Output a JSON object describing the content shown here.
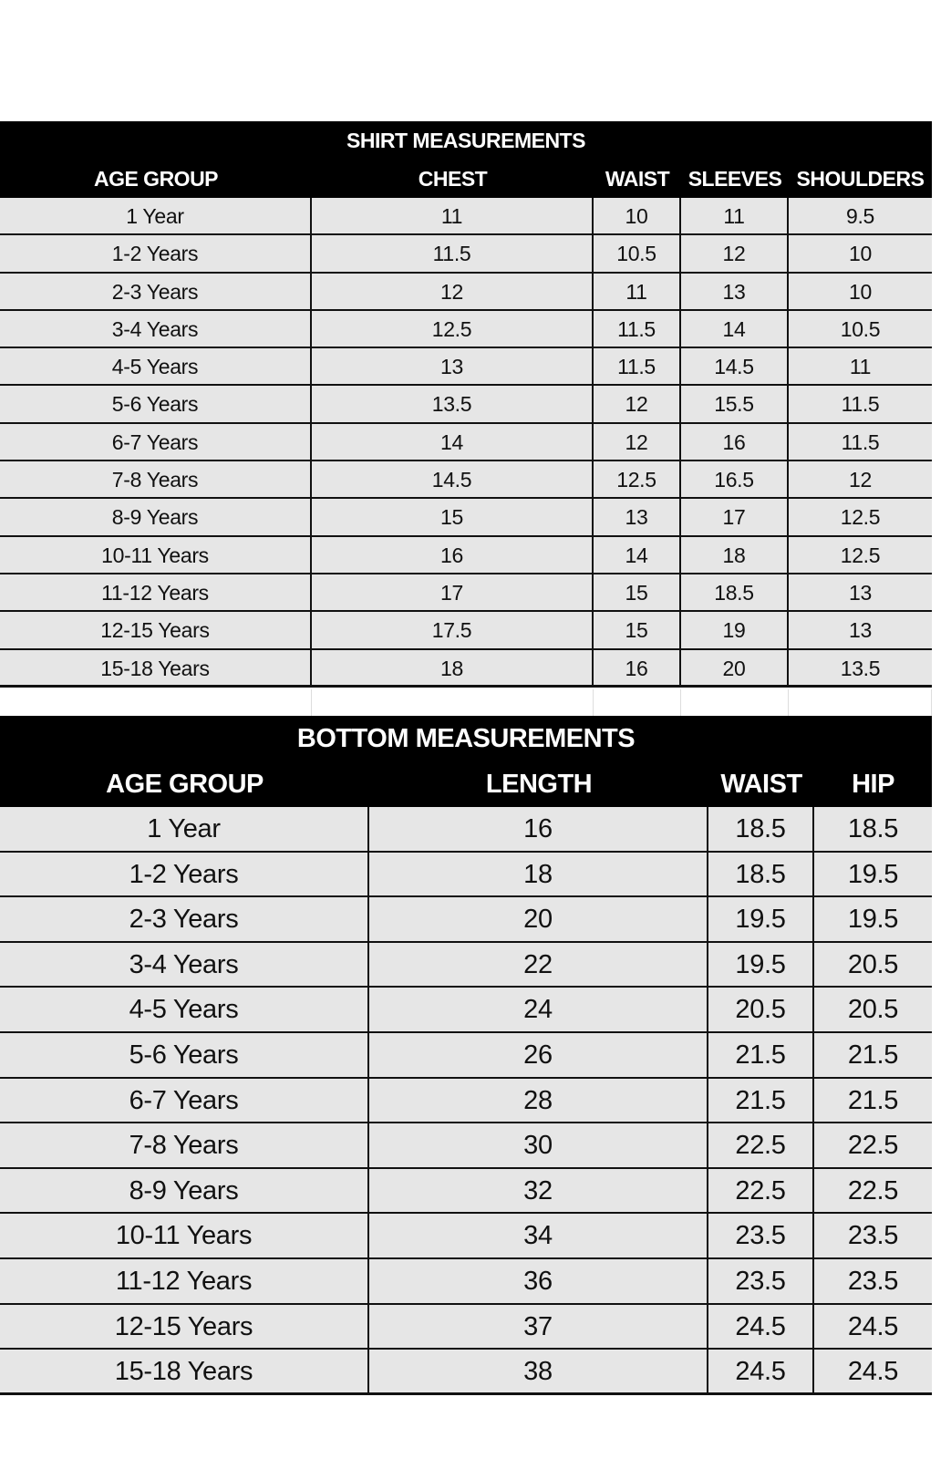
{
  "shirt": {
    "title": "SHIRT MEASUREMENTS",
    "headers": [
      "AGE GROUP",
      "CHEST",
      "WAIST",
      "SLEEVES",
      "SHOULDERS"
    ],
    "rows": [
      [
        "1 Year",
        "11",
        "10",
        "11",
        "9.5"
      ],
      [
        "1-2 Years",
        "11.5",
        "10.5",
        "12",
        "10"
      ],
      [
        "2-3 Years",
        "12",
        "11",
        "13",
        "10"
      ],
      [
        "3-4 Years",
        "12.5",
        "11.5",
        "14",
        "10.5"
      ],
      [
        "4-5 Years",
        "13",
        "11.5",
        "14.5",
        "11"
      ],
      [
        "5-6 Years",
        "13.5",
        "12",
        "15.5",
        "11.5"
      ],
      [
        "6-7 Years",
        "14",
        "12",
        "16",
        "11.5"
      ],
      [
        "7-8 Years",
        "14.5",
        "12.5",
        "16.5",
        "12"
      ],
      [
        "8-9 Years",
        "15",
        "13",
        "17",
        "12.5"
      ],
      [
        "10-11 Years",
        "16",
        "14",
        "18",
        "12.5"
      ],
      [
        "11-12 Years",
        "17",
        "15",
        "18.5",
        "13"
      ],
      [
        "12-15 Years",
        "17.5",
        "15",
        "19",
        "13"
      ],
      [
        "15-18 Years",
        "18",
        "16",
        "20",
        "13.5"
      ]
    ]
  },
  "bottom": {
    "title": "BOTTOM MEASUREMENTS",
    "headers": [
      "AGE GROUP",
      "LENGTH",
      "WAIST",
      "HIP"
    ],
    "rows": [
      [
        "1 Year",
        "16",
        "18.5",
        "18.5"
      ],
      [
        "1-2 Years",
        "18",
        "18.5",
        "19.5"
      ],
      [
        "2-3 Years",
        "20",
        "19.5",
        "19.5"
      ],
      [
        "3-4 Years",
        "22",
        "19.5",
        "20.5"
      ],
      [
        "4-5 Years",
        "24",
        "20.5",
        "20.5"
      ],
      [
        "5-6 Years",
        "26",
        "21.5",
        "21.5"
      ],
      [
        "6-7 Years",
        "28",
        "21.5",
        "21.5"
      ],
      [
        "7-8 Years",
        "30",
        "22.5",
        "22.5"
      ],
      [
        "8-9 Years",
        "32",
        "22.5",
        "22.5"
      ],
      [
        "10-11 Years",
        "34",
        "23.5",
        "23.5"
      ],
      [
        "11-12 Years",
        "36",
        "23.5",
        "23.5"
      ],
      [
        "12-15 Years",
        "37",
        "24.5",
        "24.5"
      ],
      [
        "15-18 Years",
        "38",
        "24.5",
        "24.5"
      ]
    ]
  },
  "colors": {
    "header_bg": "#000000",
    "header_text": "#ffffff",
    "row_bg": "#e6e6e6",
    "border": "#111111"
  }
}
